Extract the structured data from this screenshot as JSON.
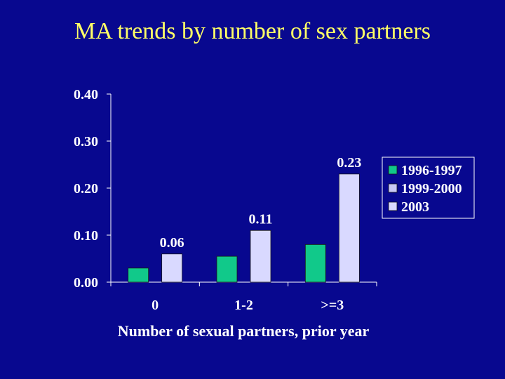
{
  "title": "MA trends by number of sex partners",
  "colors": {
    "background": "#08088f",
    "title": "#ffff66",
    "axis": "#ffffff",
    "series": [
      "#11c98a",
      "#c9c9f7",
      "#d9d9ff"
    ]
  },
  "chart_data": {
    "type": "bar",
    "categories": [
      "0",
      "1-2",
      ">=3"
    ],
    "series": [
      {
        "name": "1996-1997",
        "values": [
          0.03,
          0.055,
          0.08
        ],
        "labels": [
          "",
          "",
          ""
        ]
      },
      {
        "name": "1999-2000",
        "values": [
          null,
          null,
          null
        ],
        "labels": [
          "",
          "",
          ""
        ]
      },
      {
        "name": "2003",
        "values": [
          0.06,
          0.11,
          0.23
        ],
        "labels": [
          "0.06",
          "0.11",
          "0.23"
        ]
      }
    ],
    "xlabel": "Number of sexual partners, prior year",
    "ylabel": "",
    "ylim": [
      0,
      0.4
    ],
    "yticks": [
      "0.00",
      "0.10",
      "0.20",
      "0.30",
      "0.40"
    ],
    "grid": false,
    "legend_position": "right"
  }
}
